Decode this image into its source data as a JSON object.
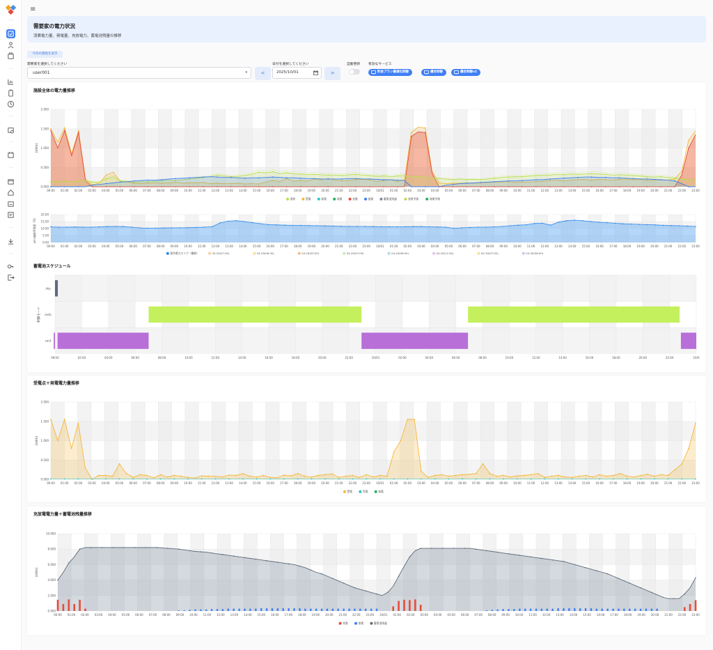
{
  "header": {
    "title": "需要家の電力状況",
    "subtitle": "消費電力量、発電量、充放電力、蓄電池残量の推移"
  },
  "controls": {
    "today_button": "今日の需給を表示",
    "user_label": "需要家を選択してください",
    "user_value": "user001",
    "date_label": "日付を選択してください",
    "date_value": "2025/10/01",
    "prev": "<",
    "next": ">",
    "auto_update_label": "自動更新",
    "auto_update_on": false,
    "services_label": "有効なサービス",
    "services": [
      "料金プラン最適化制御",
      "優合制御",
      "優合制御v2"
    ]
  },
  "sidebar": {
    "icons": [
      "logo",
      "dashboard-icon",
      "user-icon",
      "building-icon",
      "chart-icon",
      "battery-icon",
      "history-icon",
      "device-icon",
      "schedule-icon",
      "calendar-icon",
      "home-icon",
      "calendar2-icon",
      "report-icon",
      "download-icon",
      "key-icon",
      "logout-icon"
    ]
  },
  "colors": {
    "consumption": "#b8e04a",
    "receive": "#f5b83a",
    "generation": "#2cc4c4",
    "pv": "#27ae60",
    "charge": "#e74c3c",
    "discharge": "#3f7ff5",
    "battery": "#7d8b99",
    "schedule_auto": "#c5f05e",
    "schedule_cact": "#b86fd8",
    "schedule_skp": "#5c6b80"
  },
  "chart_data": [
    {
      "id": "facility",
      "type": "line",
      "title": "施設全体の電力量推移",
      "ylabel": "(kWh)",
      "ylim": [
        0,
        2000
      ],
      "yticks": [
        "0.000",
        "0.500",
        "1.000",
        "1.500",
        "2.000"
      ],
      "xticks": [
        "00:00",
        "01:00",
        "02:00",
        "03:00",
        "04:00",
        "05:00",
        "06:00",
        "07:00",
        "08:00",
        "09:00",
        "10:00",
        "11:00",
        "12:00",
        "13:00",
        "14:00",
        "15:00",
        "16:00",
        "17:00",
        "18:00",
        "19:00",
        "20:00",
        "21:00",
        "22:00",
        "23:00",
        "10/01",
        "01:00",
        "02:00",
        "03:00",
        "04:00",
        "05:00",
        "06:00",
        "07:00",
        "08:00",
        "09:00",
        "10:00",
        "11:00",
        "12:00",
        "13:00",
        "14:00",
        "15:00",
        "16:00",
        "17:00",
        "18:00",
        "19:00",
        "20:00",
        "21:00",
        "22:00",
        "23:00"
      ],
      "legend": [
        "消費",
        "受電",
        "発電",
        "発電",
        "充電",
        "放電",
        "蓄電池残量",
        "消費予測",
        "発電予測"
      ],
      "series": [
        {
          "name": "受電",
          "values": [
            1500,
            1150,
            1520,
            850,
            1450,
            200,
            50,
            100,
            300,
            380,
            140,
            120,
            90,
            80,
            90,
            100,
            90,
            100,
            110,
            90,
            100,
            100,
            110,
            80,
            90,
            80,
            80,
            90,
            70,
            80,
            70,
            120,
            160,
            130,
            210,
            140,
            160,
            140,
            200,
            180,
            210,
            170,
            150,
            160,
            190,
            190,
            180,
            130,
            160,
            180,
            130,
            180,
            1400,
            1540,
            1520,
            400,
            100,
            80,
            90,
            90,
            100,
            90,
            100,
            110,
            120,
            120,
            130,
            110,
            120,
            120,
            130,
            140,
            160,
            170,
            150,
            170,
            180,
            190,
            170,
            190,
            180,
            170,
            190,
            200,
            180,
            190,
            160,
            170,
            180,
            170,
            200,
            400,
            1200,
            1450
          ]
        },
        {
          "name": "充電",
          "values": [
            1450,
            1000,
            1450,
            800,
            1400,
            150,
            0,
            0,
            0,
            0,
            0,
            0,
            0,
            0,
            0,
            0,
            0,
            0,
            0,
            0,
            0,
            0,
            0,
            0,
            0,
            0,
            0,
            0,
            0,
            0,
            0,
            0,
            0,
            0,
            0,
            0,
            0,
            0,
            0,
            0,
            0,
            0,
            0,
            0,
            0,
            0,
            0,
            0,
            0,
            0,
            0,
            0,
            1300,
            1420,
            1400,
            350,
            0,
            0,
            0,
            0,
            0,
            0,
            0,
            0,
            0,
            0,
            0,
            0,
            0,
            0,
            0,
            0,
            0,
            0,
            0,
            0,
            0,
            0,
            0,
            0,
            0,
            0,
            0,
            0,
            0,
            0,
            0,
            0,
            0,
            0,
            0,
            300,
            1000,
            1350
          ]
        },
        {
          "name": "消費",
          "values": [
            120,
            130,
            140,
            120,
            140,
            150,
            120,
            110,
            200,
            260,
            150,
            140,
            110,
            130,
            120,
            140,
            150,
            170,
            150,
            180,
            200,
            220,
            240,
            260,
            300,
            280,
            260,
            270,
            290,
            320,
            380,
            360,
            390,
            340,
            360,
            340,
            330,
            310,
            320,
            310,
            300,
            300,
            290,
            310,
            320,
            300,
            290,
            270,
            280,
            260,
            280,
            290,
            250,
            260,
            240,
            230,
            210,
            200,
            180,
            200,
            180,
            190,
            180,
            200,
            220,
            240,
            250,
            260,
            260,
            280,
            290,
            300,
            300,
            320,
            310,
            330,
            320,
            330,
            340,
            330,
            320,
            300,
            310,
            300,
            290,
            280,
            260,
            250,
            260,
            240,
            220,
            200,
            180,
            160
          ]
        },
        {
          "name": "放電",
          "values": [
            0,
            0,
            0,
            0,
            0,
            0,
            40,
            60,
            80,
            100,
            120,
            130,
            150,
            160,
            170,
            170,
            180,
            200,
            210,
            220,
            230,
            240,
            250,
            260,
            250,
            240,
            240,
            230,
            220,
            230,
            230,
            240,
            250,
            240,
            230,
            230,
            220,
            210,
            210,
            200,
            200,
            200,
            200,
            210,
            210,
            200,
            200,
            190,
            180,
            180,
            170,
            160,
            0,
            0,
            0,
            0,
            0,
            40,
            60,
            80,
            90,
            100,
            110,
            120,
            130,
            140,
            150,
            150,
            160,
            170,
            180,
            180,
            200,
            210,
            220,
            230,
            240,
            250,
            250,
            240,
            240,
            230,
            230,
            220,
            210,
            200,
            200,
            190,
            180,
            170,
            150,
            80,
            0,
            0
          ]
        }
      ]
    },
    {
      "id": "price",
      "type": "area",
      "ylabel": "JEPX価格予測値（円）",
      "ylim": [
        0,
        20
      ],
      "yticks": [
        "0.00",
        "5.00",
        "10.00",
        "15.00",
        "20.00"
      ],
      "legend": [
        "東京電力エリア（最新）",
        "04-29(07:00)",
        "04-29(06:30)",
        "04-29(05:30)",
        "04-29(07:00)",
        "04-29(06:00)",
        "04-29(11:00)",
        "04-30(07:00)",
        "04-30(08:00)"
      ],
      "values": [
        11.2,
        11.0,
        11.0,
        11.1,
        11.0,
        11.0,
        11.2,
        11.4,
        11.5,
        11.4,
        11.0,
        10.5,
        10.2,
        10.3,
        10.4,
        10.5,
        10.5,
        10.6,
        10.8,
        11.0,
        11.3,
        14.0,
        15.3,
        15.6,
        15.0,
        14.2,
        13.5,
        12.8,
        12.6,
        12.4,
        12.3,
        12.2,
        12.1,
        12.0,
        11.9,
        11.8,
        11.6,
        11.5,
        11.5,
        11.5,
        11.4,
        11.3,
        11.3,
        11.2,
        11.3,
        11.4,
        11.4,
        11.2,
        11.1,
        11.0,
        10.2,
        10.5,
        10.8,
        11.0,
        11.0,
        11.2,
        11.5,
        12.0,
        12.4,
        12.7,
        13.6,
        13.8,
        12.4,
        14.6,
        15.6,
        16.0,
        15.6,
        15.0,
        14.5,
        14.2,
        13.8,
        13.4,
        13.2,
        13.0,
        12.8,
        12.6,
        12.3,
        12.1,
        12.0,
        11.8,
        11.5
      ]
    },
    {
      "id": "schedule",
      "type": "bar",
      "title": "蓄電池スケジュール",
      "ylabel": "制御モード",
      "categories": [
        "skp",
        "auto",
        "cact"
      ],
      "xticks": [
        "09/30",
        "02:00",
        "04:00",
        "06:00",
        "08:00",
        "10:00",
        "12:00",
        "14:00",
        "16:00",
        "18:00",
        "20:00",
        "22:00",
        "10/01",
        "02:00",
        "04:00",
        "06:00",
        "08:00",
        "10:00",
        "12:00",
        "14:00",
        "16:00",
        "18:00",
        "20:00",
        "22:00",
        "10/0"
      ],
      "blocks": [
        {
          "mode": "skp",
          "start": 0.0,
          "end": 0.22
        },
        {
          "mode": "cact",
          "start": -0.1,
          "end": 0.0
        },
        {
          "mode": "cact",
          "start": 0.2,
          "end": 7.3
        },
        {
          "mode": "auto",
          "start": 7.3,
          "end": 23.9
        },
        {
          "mode": "cact",
          "start": 23.9,
          "end": 32.2
        },
        {
          "mode": "auto",
          "start": 32.2,
          "end": 48.7
        },
        {
          "mode": "cact",
          "start": 48.8,
          "end": 50.0
        }
      ]
    },
    {
      "id": "receive",
      "type": "area",
      "title": "受電点＋発電電力量推移",
      "ylabel": "(kWh)",
      "ylim": [
        0,
        2000
      ],
      "yticks": [
        "0.000",
        "0.500",
        "1.000",
        "1.500",
        "2.000"
      ],
      "legend": [
        "受電",
        "売電",
        "発電"
      ],
      "values": [
        1550,
        1000,
        1550,
        800,
        1450,
        300,
        0,
        100,
        100,
        80,
        400,
        150,
        50,
        120,
        100,
        40,
        120,
        60,
        100,
        80,
        50,
        30,
        90,
        80,
        80,
        60,
        110,
        100,
        150,
        80,
        60,
        100,
        50,
        40,
        110,
        90,
        150,
        80,
        60,
        100,
        120,
        140,
        50,
        80,
        100,
        50,
        120,
        60,
        100,
        80,
        700,
        1000,
        1550,
        1550,
        200,
        50,
        100,
        120,
        80,
        100,
        120,
        130,
        150,
        400,
        150,
        80,
        100,
        60,
        90,
        100,
        120,
        150,
        50,
        80,
        100,
        60,
        50,
        80,
        100,
        60,
        120,
        80,
        100,
        150,
        80,
        60,
        100,
        130,
        80,
        120,
        100,
        250,
        400,
        800,
        1450
      ]
    },
    {
      "id": "battery",
      "type": "area",
      "title": "充放電電力量＋蓄電池残量推移",
      "ylabel": "(kWh)",
      "ylim": [
        0,
        10000
      ],
      "yticks": [
        "0.000",
        "2.000",
        "4.000",
        "6.000",
        "8.000",
        "10.000"
      ],
      "legend": [
        "充電",
        "放電",
        "蓄電池残量"
      ],
      "soc": [
        4000,
        5000,
        6200,
        7000,
        8000,
        8200,
        8200,
        8200,
        8200,
        8200,
        8200,
        8200,
        8200,
        8200,
        8200,
        8200,
        8200,
        8200,
        8200,
        8150,
        8100,
        8050,
        8000,
        7900,
        7800,
        7700,
        7650,
        7600,
        7500,
        7400,
        7300,
        7200,
        7100,
        7000,
        6900,
        6800,
        6700,
        6600,
        6500,
        6400,
        6300,
        6200,
        6100,
        6000,
        5800,
        5600,
        5300,
        5000,
        4800,
        4500,
        4200,
        3900,
        3600,
        3300,
        3000,
        2800,
        2600,
        2400,
        2200,
        2000,
        2400,
        3200,
        4500,
        5800,
        7000,
        7800,
        8100,
        8100,
        8100,
        8100,
        8100,
        8100,
        8100,
        8100,
        8100,
        8100,
        8000,
        7900,
        7800,
        7700,
        7600,
        7500,
        7400,
        7300,
        7200,
        7100,
        7000,
        6900,
        6800,
        6700,
        6600,
        6500,
        6400,
        6200,
        6000,
        5800,
        5600,
        5400,
        5200,
        5000,
        4800,
        4500,
        4200,
        3900,
        3600,
        3300,
        3000,
        2700,
        2400,
        2100,
        1800,
        1600,
        1600,
        1600,
        2200,
        3000,
        4300
      ],
      "charge": [
        1450,
        900,
        1500,
        900,
        1450,
        300,
        0,
        0,
        0,
        0,
        0,
        0,
        0,
        0,
        0,
        0,
        0,
        0,
        0,
        0,
        0,
        0,
        0,
        0,
        0,
        0,
        0,
        0,
        0,
        0,
        0,
        0,
        0,
        0,
        0,
        0,
        0,
        0,
        0,
        0,
        0,
        0,
        0,
        0,
        0,
        0,
        0,
        0,
        0,
        0,
        0,
        0,
        0,
        0,
        0,
        0,
        0,
        0,
        0,
        0,
        0,
        600,
        1300,
        1450,
        1400,
        1500,
        800,
        0,
        0,
        0,
        0,
        0,
        0,
        0,
        0,
        0,
        0,
        0,
        0,
        0,
        0,
        0,
        0,
        0,
        0,
        0,
        0,
        0,
        0,
        0,
        0,
        0,
        0,
        0,
        0,
        0,
        0,
        0,
        0,
        0,
        0,
        0,
        0,
        0,
        0,
        0,
        0,
        0,
        0,
        0,
        0,
        0,
        0,
        0,
        500,
        900,
        1400
      ],
      "discharge": [
        0,
        0,
        0,
        0,
        0,
        0,
        0,
        0,
        0,
        0,
        0,
        0,
        0,
        0,
        0,
        0,
        0,
        0,
        0,
        0,
        0,
        0,
        80,
        100,
        150,
        200,
        200,
        200,
        250,
        250,
        250,
        300,
        300,
        300,
        300,
        300,
        300,
        350,
        350,
        350,
        350,
        350,
        350,
        350,
        350,
        300,
        300,
        300,
        300,
        300,
        300,
        300,
        300,
        300,
        300,
        300,
        300,
        300,
        300,
        0,
        0,
        0,
        0,
        0,
        0,
        0,
        0,
        0,
        0,
        0,
        0,
        0,
        0,
        0,
        0,
        0,
        0,
        0,
        100,
        150,
        200,
        250,
        250,
        250,
        300,
        300,
        300,
        300,
        300,
        300,
        300,
        350,
        350,
        350,
        350,
        350,
        350,
        350,
        300,
        300,
        300,
        300,
        300,
        300,
        300,
        300,
        300,
        300,
        300,
        300,
        0,
        0,
        0,
        0,
        0,
        0
      ]
    }
  ]
}
